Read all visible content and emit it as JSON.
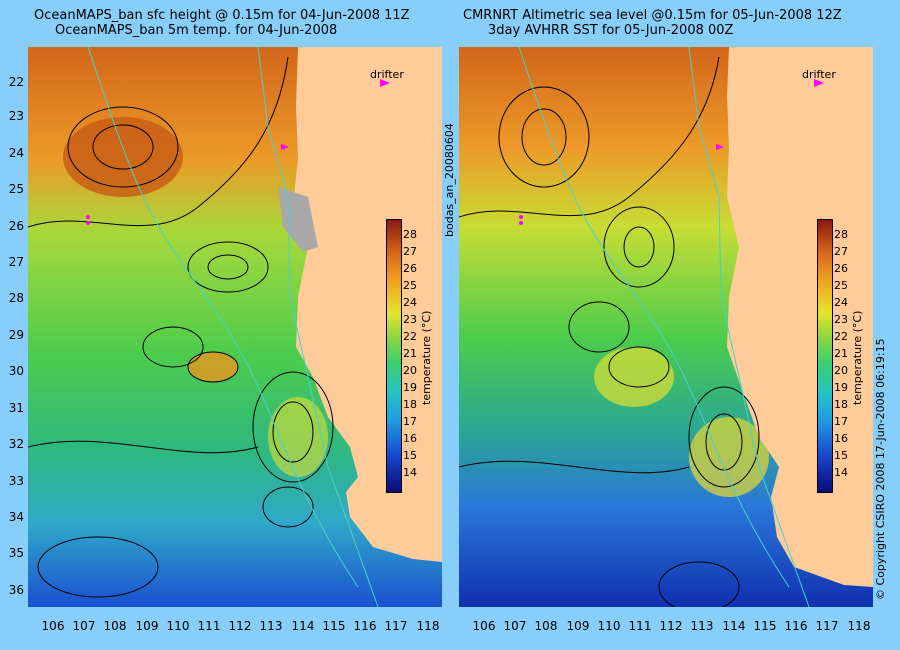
{
  "panels": [
    {
      "title1": "OceanMAPS_ban sfc height @ 0.15m for 04-Jun-2008 11Z",
      "title2": "OceanMAPS_ban 5m temp. for 04-Jun-2008"
    },
    {
      "title1": "CMRNRT Altimetric sea level  @0.15m  for 05-Jun-2008 12Z",
      "title2": "3day AVHRR SST for 05-Jun-2008 00Z"
    }
  ],
  "lat_labels": [
    "22",
    "23",
    "24",
    "25",
    "26",
    "27",
    "28",
    "29",
    "30",
    "31",
    "32",
    "33",
    "34",
    "35",
    "36"
  ],
  "lon_labels": [
    "106",
    "107",
    "108",
    "109",
    "110",
    "111",
    "112",
    "113",
    "114",
    "115",
    "116",
    "117",
    "118"
  ],
  "colorbar": {
    "ticks": [
      "28",
      "27",
      "26",
      "25",
      "24",
      "23",
      "22",
      "21",
      "20",
      "19",
      "18",
      "17",
      "16",
      "15",
      "14"
    ],
    "label": "temperature (°C)",
    "min": 13,
    "max": 29
  },
  "drifter_label": "drifter",
  "side_left": "bodas_an_20080604",
  "side_right": "© Copyright CSIRO 2008   17-Jun-2008 06:19:15",
  "colors": {
    "background": "#87cefa",
    "land": "#ffcc99",
    "contour": "#000000",
    "isobath": "#48d1cc",
    "drifter": "#ff00ff"
  }
}
